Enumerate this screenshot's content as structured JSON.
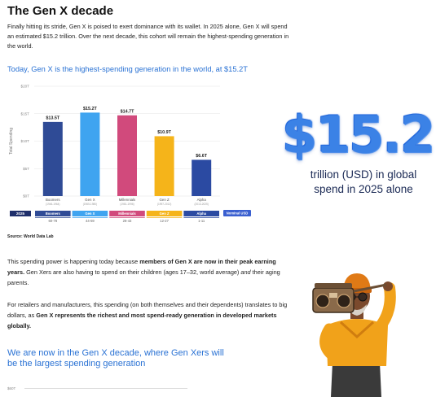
{
  "title": "The Gen X decade",
  "intro": "Finally hitting its stride, Gen X is poised to exert dominance with its wallet. In 2025 alone, Gen X will spend an estimated $15.2 trillion. Over the next decade, this cohort will remain the highest-spending generation in the world.",
  "subhead": "Today, Gen X is the highest-spending generation in the world, at $15.2T",
  "source": "Source: World Data Lab",
  "big_stat": {
    "number": "$15.2",
    "caption": "trillion (USD) in global spend in 2025 alone"
  },
  "body1": {
    "a": "This spending power is happening today because ",
    "b": "members of Gen X are now in their peak earning years.",
    "c": " Gen Xers are also having to spend on their children (ages 17–32, world average) ",
    "d": "and",
    "e": " their aging parents."
  },
  "body2": {
    "a": "For retailers and manufacturers, this spending (on both themselves and their dependents) translates to big dollars, as ",
    "b": "Gen X represents the richest and most spend-ready generation in developed markets globally."
  },
  "closing": "We are now in the Gen X decade, where Gen Xers will be the largest spending generation",
  "bottom_tick": "$60T",
  "chart_data": {
    "type": "bar",
    "ylabel": "Total Spending",
    "yticks": [
      "$0T",
      "$5T",
      "$10T",
      "$15T",
      "$20T"
    ],
    "ylim": [
      0,
      20
    ],
    "categories": [
      "Boomers",
      "Gen X",
      "Millennials",
      "Gen Z",
      "Alpha"
    ],
    "year_ranges": [
      "(1946-1964)",
      "(1965-1980)",
      "(1981-1996)",
      "(1997-2012)",
      "(2013-2025)"
    ],
    "values": [
      13.5,
      15.2,
      14.7,
      10.9,
      6.6
    ],
    "value_labels": [
      "$13.5T",
      "$15.2T",
      "$14.7T",
      "$10.9T",
      "$6.6T"
    ],
    "colors": [
      "#2f4b96",
      "#3fa4f0",
      "#d14a7c",
      "#f5b41a",
      "#2b4aa2"
    ],
    "row_year": "2025",
    "ages": [
      "60-78",
      "44-59",
      "28-43",
      "12-27",
      "1-11"
    ],
    "badge": "Nominal USD"
  }
}
